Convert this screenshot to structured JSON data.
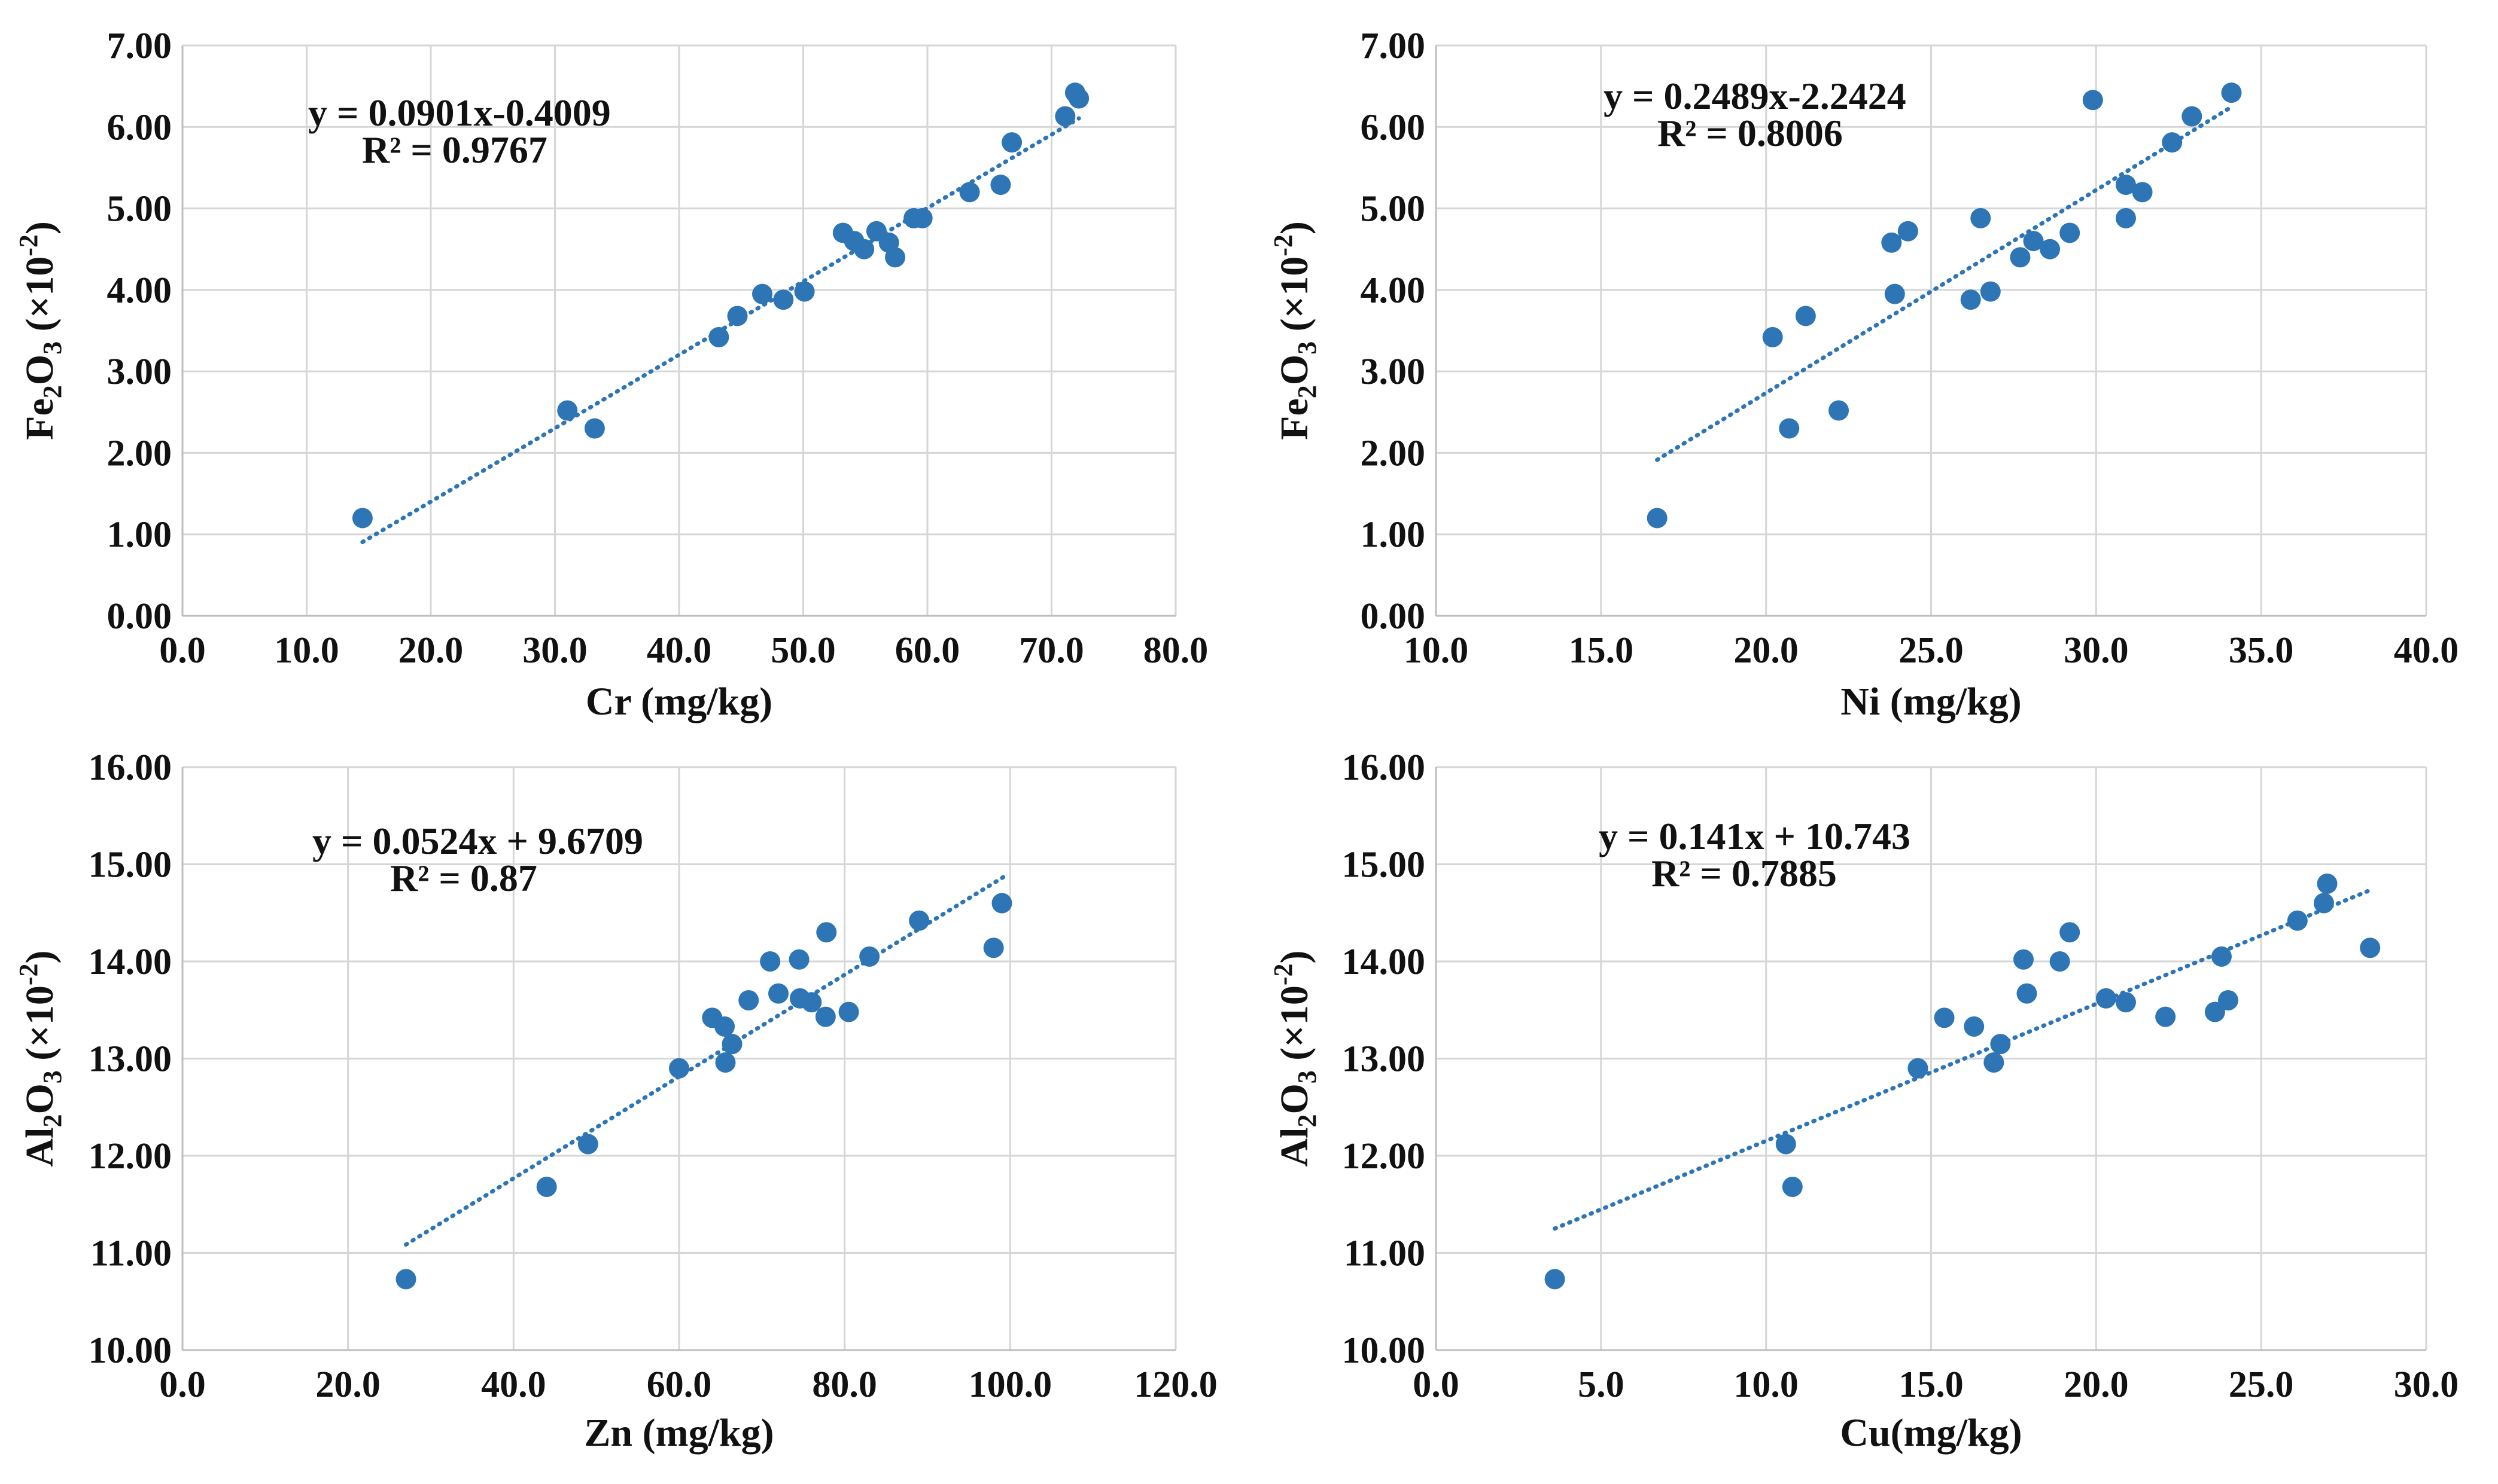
{
  "colors": {
    "marker": "#2e75b6",
    "trendline": "#2e75b6",
    "grid": "#d6d6d6",
    "text": "#111111"
  },
  "chart_data": [
    {
      "type": "scatter",
      "xlabel": "Cr (mg/kg)",
      "ylabel": "Fe2O3 (×10⁻²)",
      "ylabel_parts": {
        "main": "Fe",
        "sub": "2",
        "mid": "O",
        "sub2": "3",
        "tail": " (×10",
        "sup": "-2",
        "close": ")"
      },
      "xlim": [
        0,
        80
      ],
      "ylim": [
        0,
        7
      ],
      "xticks": [
        0,
        10,
        20,
        30,
        40,
        50,
        60,
        70,
        80
      ],
      "yticks": [
        0,
        1,
        2,
        3,
        4,
        5,
        6,
        7
      ],
      "xtick_labels": [
        "0.0",
        "10.0",
        "20.0",
        "30.0",
        "40.0",
        "50.0",
        "60.0",
        "70.0",
        "80.0"
      ],
      "ytick_labels": [
        "0.00",
        "1.00",
        "2.00",
        "3.00",
        "4.00",
        "5.00",
        "6.00",
        "7.00"
      ],
      "equation": "y = 0.0901x-0.4009",
      "r_squared": "R² = 0.9767",
      "trendline": {
        "slope": 0.0901,
        "intercept": -0.4009,
        "x_range": [
          14.5,
          72.2
        ]
      },
      "points": [
        {
          "x": 14.5,
          "y": 1.2
        },
        {
          "x": 31.0,
          "y": 2.52
        },
        {
          "x": 33.2,
          "y": 2.3
        },
        {
          "x": 43.2,
          "y": 3.42
        },
        {
          "x": 44.7,
          "y": 3.68
        },
        {
          "x": 46.7,
          "y": 3.95
        },
        {
          "x": 48.4,
          "y": 3.88
        },
        {
          "x": 50.1,
          "y": 3.98
        },
        {
          "x": 53.2,
          "y": 4.7
        },
        {
          "x": 54.1,
          "y": 4.6
        },
        {
          "x": 54.9,
          "y": 4.5
        },
        {
          "x": 55.9,
          "y": 4.72
        },
        {
          "x": 56.9,
          "y": 4.58
        },
        {
          "x": 57.4,
          "y": 4.4
        },
        {
          "x": 58.9,
          "y": 4.88
        },
        {
          "x": 59.6,
          "y": 4.88
        },
        {
          "x": 63.4,
          "y": 5.2
        },
        {
          "x": 65.9,
          "y": 5.29
        },
        {
          "x": 66.8,
          "y": 5.81
        },
        {
          "x": 71.1,
          "y": 6.13
        },
        {
          "x": 71.9,
          "y": 6.42
        },
        {
          "x": 72.2,
          "y": 6.35
        }
      ]
    },
    {
      "type": "scatter",
      "xlabel": "Ni (mg/kg)",
      "ylabel": "Fe2O3 (×10⁻²)",
      "ylabel_parts": {
        "main": "Fe",
        "sub": "2",
        "mid": "O",
        "sub2": "3",
        "tail": " (×10",
        "sup": "-2",
        "close": ")"
      },
      "xlim": [
        10,
        40
      ],
      "ylim": [
        0,
        7
      ],
      "xticks": [
        10,
        15,
        20,
        25,
        30,
        35,
        40
      ],
      "yticks": [
        0,
        1,
        2,
        3,
        4,
        5,
        6,
        7
      ],
      "xtick_labels": [
        "10.0",
        "15.0",
        "20.0",
        "25.0",
        "30.0",
        "35.0",
        "40.0"
      ],
      "ytick_labels": [
        "0.00",
        "1.00",
        "2.00",
        "3.00",
        "4.00",
        "5.00",
        "6.00",
        "7.00"
      ],
      "equation": "y = 0.2489x-2.2424",
      "r_squared": "R² = 0.8006",
      "trendline": {
        "slope": 0.2489,
        "intercept": -2.2424,
        "x_range": [
          16.7,
          34.1
        ]
      },
      "points": [
        {
          "x": 16.7,
          "y": 1.2
        },
        {
          "x": 20.2,
          "y": 3.42
        },
        {
          "x": 20.7,
          "y": 2.3
        },
        {
          "x": 21.2,
          "y": 3.68
        },
        {
          "x": 22.2,
          "y": 2.52
        },
        {
          "x": 23.8,
          "y": 4.58
        },
        {
          "x": 23.9,
          "y": 3.95
        },
        {
          "x": 24.3,
          "y": 4.72
        },
        {
          "x": 26.2,
          "y": 3.88
        },
        {
          "x": 26.5,
          "y": 4.88
        },
        {
          "x": 26.8,
          "y": 3.98
        },
        {
          "x": 27.7,
          "y": 4.4
        },
        {
          "x": 28.1,
          "y": 4.6
        },
        {
          "x": 28.6,
          "y": 4.5
        },
        {
          "x": 29.2,
          "y": 4.7
        },
        {
          "x": 29.9,
          "y": 6.33
        },
        {
          "x": 30.9,
          "y": 5.29
        },
        {
          "x": 30.9,
          "y": 4.88
        },
        {
          "x": 31.4,
          "y": 5.2
        },
        {
          "x": 32.3,
          "y": 5.81
        },
        {
          "x": 32.9,
          "y": 6.13
        },
        {
          "x": 34.1,
          "y": 6.42
        }
      ]
    },
    {
      "type": "scatter",
      "xlabel": "Zn (mg/kg)",
      "ylabel": "Al2O3 (×10⁻²)",
      "ylabel_parts": {
        "main": "Al",
        "sub": "2",
        "mid": "O",
        "sub2": "3",
        "tail": " (×10",
        "sup": "-2",
        "close": ")"
      },
      "xlim": [
        0,
        120
      ],
      "ylim": [
        10,
        16
      ],
      "xticks": [
        0,
        20,
        40,
        60,
        80,
        100,
        120
      ],
      "yticks": [
        10,
        11,
        12,
        13,
        14,
        15,
        16
      ],
      "xtick_labels": [
        "0.0",
        "20.0",
        "40.0",
        "60.0",
        "80.0",
        "100.0",
        "120.0"
      ],
      "ytick_labels": [
        "10.00",
        "11.00",
        "12.00",
        "13.00",
        "14.00",
        "15.00",
        "16.00"
      ],
      "equation": "y = 0.0524x + 9.6709",
      "r_squared": "R² = 0.87",
      "trendline": {
        "slope": 0.0524,
        "intercept": 9.6709,
        "x_range": [
          27.0,
          99.5
        ]
      },
      "points": [
        {
          "x": 27.0,
          "y": 10.73
        },
        {
          "x": 44.0,
          "y": 11.68
        },
        {
          "x": 49.0,
          "y": 12.12
        },
        {
          "x": 60.0,
          "y": 12.9
        },
        {
          "x": 64.0,
          "y": 13.42
        },
        {
          "x": 65.5,
          "y": 13.33
        },
        {
          "x": 65.6,
          "y": 12.96
        },
        {
          "x": 66.4,
          "y": 13.15
        },
        {
          "x": 68.4,
          "y": 13.6
        },
        {
          "x": 71.0,
          "y": 14.0
        },
        {
          "x": 72.0,
          "y": 13.67
        },
        {
          "x": 74.5,
          "y": 14.02
        },
        {
          "x": 74.6,
          "y": 13.62
        },
        {
          "x": 76.0,
          "y": 13.58
        },
        {
          "x": 77.7,
          "y": 13.43
        },
        {
          "x": 77.8,
          "y": 14.3
        },
        {
          "x": 80.5,
          "y": 13.48
        },
        {
          "x": 83.0,
          "y": 14.05
        },
        {
          "x": 89.0,
          "y": 14.42
        },
        {
          "x": 98.0,
          "y": 14.14
        },
        {
          "x": 99.0,
          "y": 14.6
        }
      ]
    },
    {
      "type": "scatter",
      "xlabel": "Cu(mg/kg)",
      "ylabel": "Al2O3 (×10⁻²)",
      "ylabel_parts": {
        "main": "Al",
        "sub": "2",
        "mid": "O",
        "sub2": "3",
        "tail": " (×10",
        "sup": "-2",
        "close": ")"
      },
      "xlim": [
        0,
        30
      ],
      "ylim": [
        10,
        16
      ],
      "xticks": [
        0,
        5,
        10,
        15,
        20,
        25,
        30
      ],
      "yticks": [
        10,
        11,
        12,
        13,
        14,
        15,
        16
      ],
      "xtick_labels": [
        "0.0",
        "5.0",
        "10.0",
        "15.0",
        "20.0",
        "25.0",
        "30.0"
      ],
      "ytick_labels": [
        "10.00",
        "11.00",
        "12.00",
        "13.00",
        "14.00",
        "15.00",
        "16.00"
      ],
      "equation": "y = 0.141x + 10.743",
      "r_squared": "R² = 0.7885",
      "trendline": {
        "slope": 0.141,
        "intercept": 10.743,
        "x_range": [
          3.6,
          28.3
        ]
      },
      "points": [
        {
          "x": 3.6,
          "y": 10.73
        },
        {
          "x": 10.6,
          "y": 12.12
        },
        {
          "x": 10.8,
          "y": 11.68
        },
        {
          "x": 14.6,
          "y": 12.9
        },
        {
          "x": 15.4,
          "y": 13.42
        },
        {
          "x": 16.3,
          "y": 13.33
        },
        {
          "x": 16.9,
          "y": 12.96
        },
        {
          "x": 17.1,
          "y": 13.15
        },
        {
          "x": 17.8,
          "y": 14.02
        },
        {
          "x": 17.9,
          "y": 13.67
        },
        {
          "x": 18.9,
          "y": 14.0
        },
        {
          "x": 19.2,
          "y": 14.3
        },
        {
          "x": 20.3,
          "y": 13.62
        },
        {
          "x": 20.9,
          "y": 13.58
        },
        {
          "x": 22.1,
          "y": 13.43
        },
        {
          "x": 23.6,
          "y": 13.48
        },
        {
          "x": 23.8,
          "y": 14.05
        },
        {
          "x": 24.0,
          "y": 13.6
        },
        {
          "x": 26.1,
          "y": 14.42
        },
        {
          "x": 26.9,
          "y": 14.6
        },
        {
          "x": 27.0,
          "y": 14.8
        },
        {
          "x": 28.3,
          "y": 14.14
        }
      ]
    }
  ]
}
